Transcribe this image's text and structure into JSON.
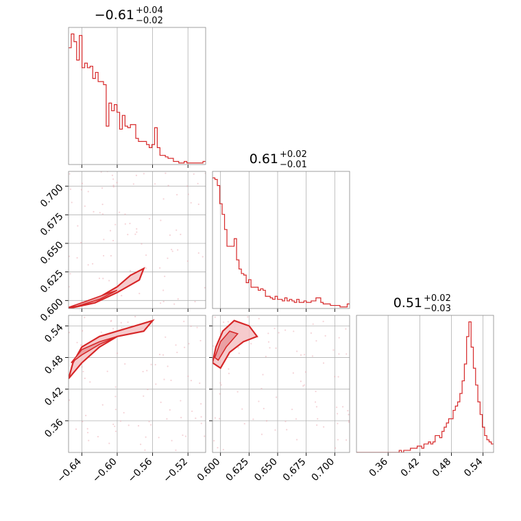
{
  "chart_data": {
    "type": "corner",
    "parameters": [
      {
        "title_value": "−0.61",
        "title_plus": "+0.04",
        "title_minus": "−0.02",
        "range": [
          -0.655,
          -0.5
        ],
        "ticks": [
          -0.64,
          -0.6,
          -0.56,
          -0.52
        ],
        "tick_labels": [
          "−0.64",
          "−0.60",
          "−0.56",
          "−0.52"
        ]
      },
      {
        "title_value": "0.61",
        "title_plus": "+0.02",
        "title_minus": "−0.01",
        "range": [
          0.593,
          0.713
        ],
        "ticks": [
          0.6,
          0.625,
          0.65,
          0.675,
          0.7
        ],
        "tick_labels": [
          "0.600",
          "0.625",
          "0.650",
          "0.675",
          "0.700"
        ]
      },
      {
        "title_value": "0.51",
        "title_plus": "+0.02",
        "title_minus": "−0.03",
        "range": [
          0.3,
          0.56
        ],
        "ticks": [
          0.36,
          0.42,
          0.48,
          0.54
        ],
        "tick_labels": [
          "0.36",
          "0.42",
          "0.48",
          "0.54"
        ]
      }
    ],
    "histograms": [
      {
        "param": 0,
        "bins": [
          -0.655,
          -0.5
        ],
        "counts": [
          76,
          85,
          80,
          68,
          84,
          63,
          66,
          63,
          64,
          56,
          60,
          54,
          54,
          52,
          25,
          40,
          35,
          39,
          34,
          23,
          32,
          25,
          24,
          26,
          26,
          17,
          15,
          15,
          15,
          13,
          11,
          13,
          24,
          11,
          6,
          6,
          5,
          4,
          4,
          2,
          2,
          1,
          1,
          2,
          1,
          1,
          1,
          1,
          1,
          1,
          2
        ]
      },
      {
        "param": 1,
        "bins": [
          0.593,
          0.713
        ],
        "counts": [
          86,
          85,
          81,
          69,
          62,
          52,
          41,
          41,
          41,
          46,
          32,
          26,
          23,
          22,
          17,
          19,
          14,
          14,
          14,
          12,
          13,
          12,
          8,
          8,
          7,
          6,
          8,
          6,
          6,
          5,
          7,
          5,
          6,
          5,
          4,
          6,
          4,
          4,
          5,
          4,
          4,
          5,
          5,
          7,
          7,
          4,
          3,
          3,
          3,
          2,
          2,
          2,
          2,
          1,
          1,
          1,
          3
        ]
      },
      {
        "param": 2,
        "bins": [
          0.3,
          0.56
        ],
        "counts": [
          0,
          0,
          0,
          0,
          0,
          0,
          0,
          0,
          0,
          0,
          0,
          0,
          0,
          0,
          0,
          0,
          0,
          0,
          0,
          1,
          0,
          1,
          1,
          1,
          2,
          2,
          2,
          3,
          3,
          2,
          4,
          4,
          5,
          4,
          5,
          8,
          8,
          7,
          10,
          12,
          14,
          16,
          16,
          20,
          22,
          24,
          28,
          34,
          42,
          55,
          62,
          50,
          40,
          32,
          24,
          18,
          12,
          8,
          6,
          5,
          4
        ]
      }
    ],
    "color": "#d62728",
    "grid": true
  }
}
